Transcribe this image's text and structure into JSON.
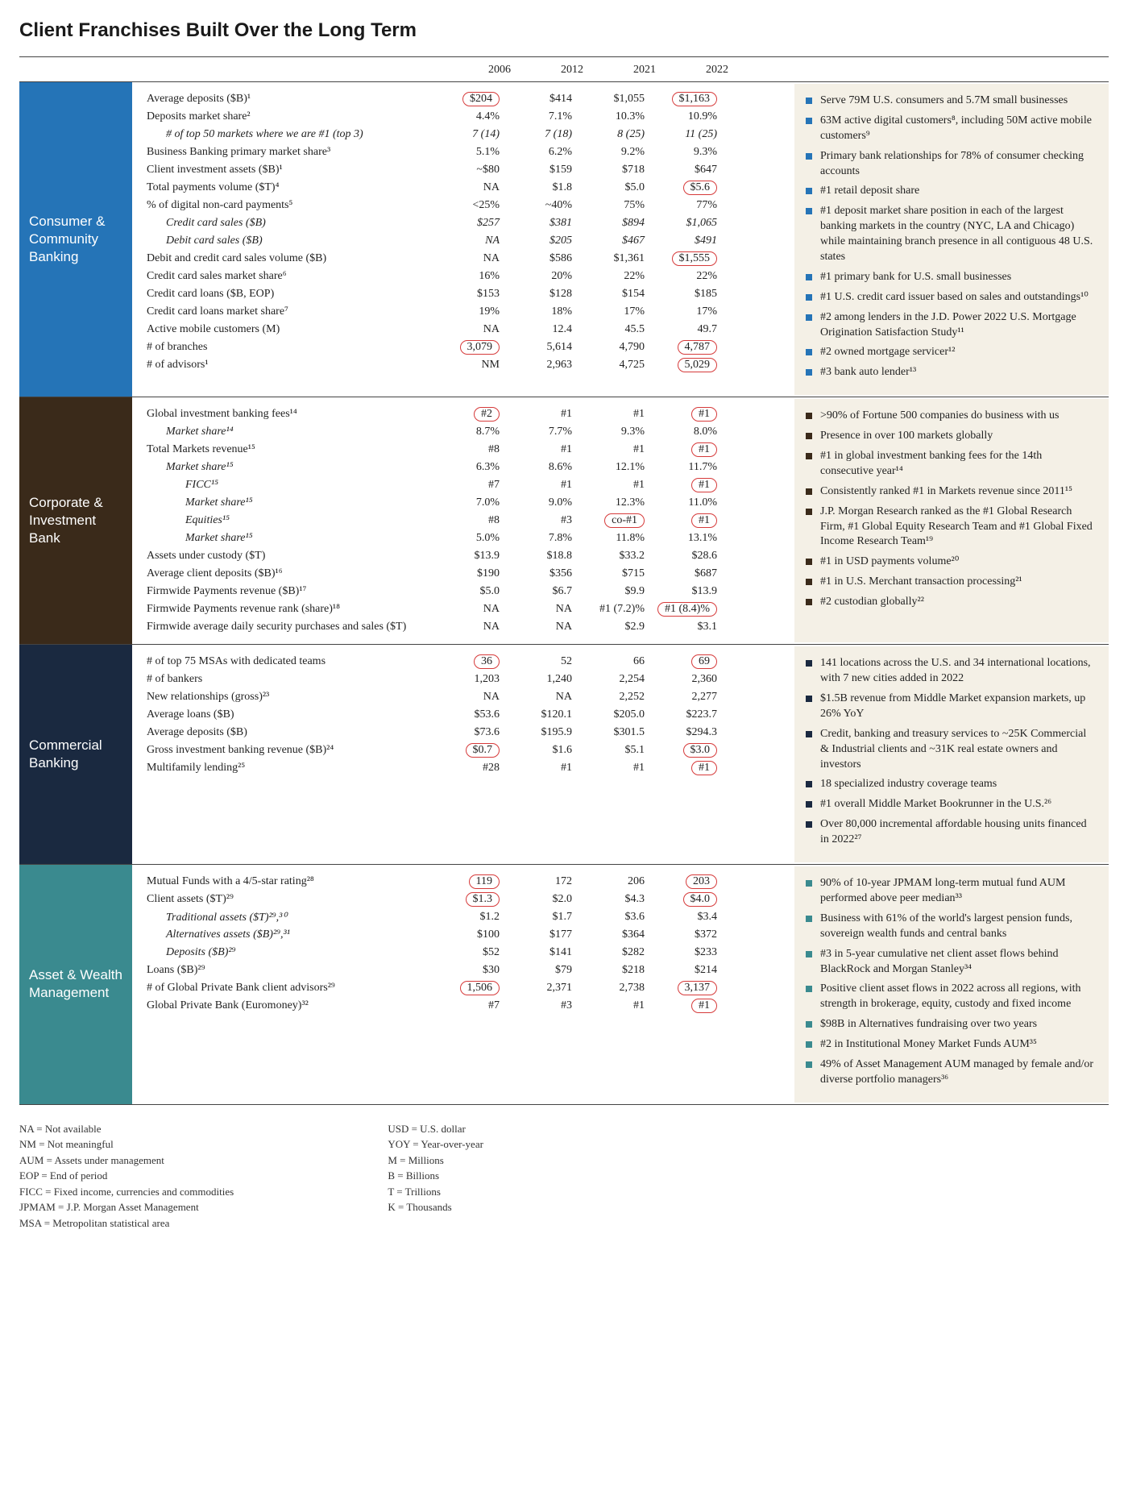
{
  "title": "Client Franchises Built Over the Long Term",
  "years": [
    "2006",
    "2012",
    "2021",
    "2022"
  ],
  "sections": [
    {
      "name": "Consumer & Community Banking",
      "color": "#2574b7",
      "bullet_color": "#2574b7",
      "metrics": [
        {
          "label": "Average deposits ($B)¹",
          "vals": [
            "$204",
            "$414",
            "$1,055",
            "$1,163"
          ],
          "circled": [
            0,
            3
          ]
        },
        {
          "label": "Deposits market share²",
          "vals": [
            "4.4%",
            "7.1%",
            "10.3%",
            "10.9%"
          ]
        },
        {
          "label": "# of top 50 markets where we are #1 (top 3)",
          "indent": 1,
          "italic": true,
          "vals": [
            "7 (14)",
            "7 (18)",
            "8 (25)",
            "11 (25)"
          ],
          "valItalic": true
        },
        {
          "label": "Business Banking primary market share³",
          "vals": [
            "5.1%",
            "6.2%",
            "9.2%",
            "9.3%"
          ]
        },
        {
          "label": "Client investment assets ($B)¹",
          "vals": [
            "~$80",
            "$159",
            "$718",
            "$647"
          ]
        },
        {
          "label": "Total payments volume ($T)⁴",
          "vals": [
            "NA",
            "$1.8",
            "$5.0",
            "$5.6"
          ],
          "circled": [
            3
          ]
        },
        {
          "label": "% of digital non-card payments⁵",
          "vals": [
            "<25%",
            "~40%",
            "75%",
            "77%"
          ]
        },
        {
          "label": "Credit card sales ($B)",
          "indent": 1,
          "italic": true,
          "vals": [
            "$257",
            "$381",
            "$894",
            "$1,065"
          ],
          "valItalic": true
        },
        {
          "label": "Debit card sales ($B)",
          "indent": 1,
          "italic": true,
          "vals": [
            "NA",
            "$205",
            "$467",
            "$491"
          ],
          "valItalic": true
        },
        {
          "label": "Debit and credit card sales volume ($B)",
          "vals": [
            "NA",
            "$586",
            "$1,361",
            "$1,555"
          ],
          "circled": [
            3
          ]
        },
        {
          "label": "Credit card sales market share⁶",
          "vals": [
            "16%",
            "20%",
            "22%",
            "22%"
          ]
        },
        {
          "label": "Credit card loans ($B, EOP)",
          "vals": [
            "$153",
            "$128",
            "$154",
            "$185"
          ]
        },
        {
          "label": "Credit card loans market share⁷",
          "vals": [
            "19%",
            "18%",
            "17%",
            "17%"
          ]
        },
        {
          "label": "Active mobile customers (M)",
          "vals": [
            "NA",
            "12.4",
            "45.5",
            "49.7"
          ]
        },
        {
          "label": "# of branches",
          "vals": [
            "3,079",
            "5,614",
            "4,790",
            "4,787"
          ],
          "circled": [
            0,
            3
          ]
        },
        {
          "label": "# of advisors¹",
          "vals": [
            "NM",
            "2,963",
            "4,725",
            "5,029"
          ],
          "circled": [
            3
          ]
        }
      ],
      "highlights": [
        "Serve 79M U.S. consumers and 5.7M small businesses",
        "63M active digital customers⁸, including 50M active mobile customers⁹",
        "Primary bank relationships for 78% of consumer checking accounts",
        "#1 retail deposit share",
        "#1 deposit market share position in each of the largest banking markets in the country (NYC, LA and Chicago) while maintaining branch presence in all contiguous 48 U.S. states",
        "#1 primary bank for U.S. small businesses",
        "#1 U.S. credit card issuer based on sales and outstandings¹⁰",
        "#2 among lenders in the J.D. Power 2022 U.S. Mortgage Origination Satisfaction Study¹¹",
        "#2 owned mortgage servicer¹²",
        "#3 bank auto lender¹³"
      ]
    },
    {
      "name": "Corporate & Investment Bank",
      "color": "#3a2a1a",
      "bullet_color": "#3a2a1a",
      "metrics": [
        {
          "label": "Global investment banking fees¹⁴",
          "vals": [
            "#2",
            "#1",
            "#1",
            "#1"
          ],
          "circled": [
            0,
            3
          ]
        },
        {
          "label": "Market share¹⁴",
          "indent": 1,
          "vals": [
            "8.7%",
            "7.7%",
            "9.3%",
            "8.0%"
          ]
        },
        {
          "label": "Total Markets revenue¹⁵",
          "vals": [
            "#8",
            "#1",
            "#1",
            "#1"
          ],
          "circled": [
            3
          ]
        },
        {
          "label": "Market share¹⁵",
          "indent": 1,
          "vals": [
            "6.3%",
            "8.6%",
            "12.1%",
            "11.7%"
          ]
        },
        {
          "label": "FICC¹⁵",
          "indent": 2,
          "vals": [
            "#7",
            "#1",
            "#1",
            "#1"
          ],
          "circled": [
            3
          ]
        },
        {
          "label": "Market share¹⁵",
          "indent": 2,
          "vals": [
            "7.0%",
            "9.0%",
            "12.3%",
            "11.0%"
          ]
        },
        {
          "label": "Equities¹⁵",
          "indent": 2,
          "vals": [
            "#8",
            "#3",
            "co-#1",
            "#1"
          ],
          "circled": [
            2,
            3
          ]
        },
        {
          "label": "Market share¹⁵",
          "indent": 2,
          "vals": [
            "5.0%",
            "7.8%",
            "11.8%",
            "13.1%"
          ]
        },
        {
          "label": "Assets under custody ($T)",
          "vals": [
            "$13.9",
            "$18.8",
            "$33.2",
            "$28.6"
          ]
        },
        {
          "label": "Average client deposits ($B)¹⁶",
          "vals": [
            "$190",
            "$356",
            "$715",
            "$687"
          ]
        },
        {
          "label": "Firmwide Payments revenue ($B)¹⁷",
          "vals": [
            "$5.0",
            "$6.7",
            "$9.9",
            "$13.9"
          ]
        },
        {
          "label": "Firmwide Payments revenue rank (share)¹⁸",
          "vals": [
            "NA",
            "NA",
            "#1 (7.2)%",
            "#1 (8.4)%"
          ],
          "circled": [
            3
          ]
        },
        {
          "label": "Firmwide average daily security purchases and sales ($T)",
          "vals": [
            "NA",
            "NA",
            "$2.9",
            "$3.1"
          ]
        }
      ],
      "highlights": [
        ">90% of Fortune 500 companies do business with us",
        "Presence in over 100 markets globally",
        "#1 in global investment banking fees for the 14th consecutive year¹⁴",
        "Consistently ranked #1 in Markets revenue since 2011¹⁵",
        "J.P. Morgan Research ranked as the #1 Global Research Firm, #1 Global Equity Research Team and #1 Global Fixed Income Research Team¹⁹",
        "#1 in USD payments volume²⁰",
        "#1 in U.S. Merchant transaction processing²¹",
        "#2 custodian globally²²"
      ]
    },
    {
      "name": "Commercial Banking",
      "color": "#1a2940",
      "bullet_color": "#1a2940",
      "metrics": [
        {
          "label": "# of top 75 MSAs with dedicated teams",
          "vals": [
            "36",
            "52",
            "66",
            "69"
          ],
          "circled": [
            0,
            3
          ]
        },
        {
          "label": "# of bankers",
          "vals": [
            "1,203",
            "1,240",
            "2,254",
            "2,360"
          ]
        },
        {
          "label": "New relationships (gross)²³",
          "vals": [
            "NA",
            "NA",
            "2,252",
            "2,277"
          ]
        },
        {
          "label": "Average loans ($B)",
          "vals": [
            "$53.6",
            "$120.1",
            "$205.0",
            "$223.7"
          ]
        },
        {
          "label": "Average deposits ($B)",
          "vals": [
            "$73.6",
            "$195.9",
            "$301.5",
            "$294.3"
          ]
        },
        {
          "label": "Gross investment banking revenue ($B)²⁴",
          "vals": [
            "$0.7",
            "$1.6",
            "$5.1",
            "$3.0"
          ],
          "circled": [
            0,
            3
          ]
        },
        {
          "label": "Multifamily lending²⁵",
          "vals": [
            "#28",
            "#1",
            "#1",
            "#1"
          ],
          "circled": [
            3
          ]
        }
      ],
      "highlights": [
        "141 locations across the U.S. and 34 international locations, with 7 new cities added in 2022",
        "$1.5B revenue from Middle Market expansion markets, up 26% YoY",
        "Credit, banking and treasury services to ~25K Commercial & Industrial clients and ~31K real estate owners and investors",
        "18 specialized industry coverage teams",
        "#1 overall Middle Market Bookrunner in the U.S.²⁶",
        "Over 80,000 incremental affordable housing units financed in 2022²⁷"
      ]
    },
    {
      "name": "Asset & Wealth Management",
      "color": "#3a8a8f",
      "bullet_color": "#3a8a8f",
      "metrics": [
        {
          "label": "Mutual Funds with a 4/5-star rating²⁸",
          "vals": [
            "119",
            "172",
            "206",
            "203"
          ],
          "circled": [
            0,
            3
          ]
        },
        {
          "label": "Client assets ($T)²⁹",
          "vals": [
            "$1.3",
            "$2.0",
            "$4.3",
            "$4.0"
          ],
          "circled": [
            0,
            3
          ]
        },
        {
          "label": "Traditional assets ($T)²⁹,³⁰",
          "indent": 1,
          "vals": [
            "$1.2",
            "$1.7",
            "$3.6",
            "$3.4"
          ]
        },
        {
          "label": "Alternatives assets ($B)²⁹,³¹",
          "indent": 1,
          "vals": [
            "$100",
            "$177",
            "$364",
            "$372"
          ]
        },
        {
          "label": "Deposits ($B)²⁹",
          "indent": 1,
          "vals": [
            "$52",
            "$141",
            "$282",
            "$233"
          ]
        },
        {
          "label": "Loans ($B)²⁹",
          "vals": [
            "$30",
            "$79",
            "$218",
            "$214"
          ]
        },
        {
          "label": "# of Global Private Bank client advisors²⁹",
          "vals": [
            "1,506",
            "2,371",
            "2,738",
            "3,137"
          ],
          "circled": [
            0,
            3
          ]
        },
        {
          "label": "Global Private Bank (Euromoney)³²",
          "vals": [
            "#7",
            "#3",
            "#1",
            "#1"
          ],
          "circled": [
            3
          ]
        }
      ],
      "highlights": [
        "90% of 10-year JPMAM long-term mutual fund AUM performed above peer median³³",
        "Business with 61% of the world's largest pension funds, sovereign wealth funds and central banks",
        "#3 in 5-year cumulative net client asset flows behind BlackRock and Morgan Stanley³⁴",
        "Positive client asset flows in 2022 across all regions, with strength in brokerage, equity, custody and fixed income",
        "$98B in Alternatives fundraising over two years",
        "#2 in Institutional Money Market Funds AUM³⁵",
        "49% of Asset Management AUM managed by female and/or diverse portfolio managers³⁶"
      ]
    }
  ],
  "footnotes": {
    "col1": "NA = Not available\nNM = Not meaningful\nAUM = Assets under management\nEOP = End of period\nFICC = Fixed income, currencies and commodities\nJPMAM = J.P. Morgan Asset Management\nMSA = Metropolitan statistical area",
    "col2": "USD = U.S. dollar\nYOY = Year-over-year\nM = Millions\nB = Billions\nT = Trillions\nK = Thousands",
    "col3": ""
  },
  "style": {
    "circle_border_color": "#d63a3a",
    "highlight_bg": "#f4f0e6",
    "body_font_size": 14,
    "title_font_size": 24,
    "text_color": "#222222"
  }
}
